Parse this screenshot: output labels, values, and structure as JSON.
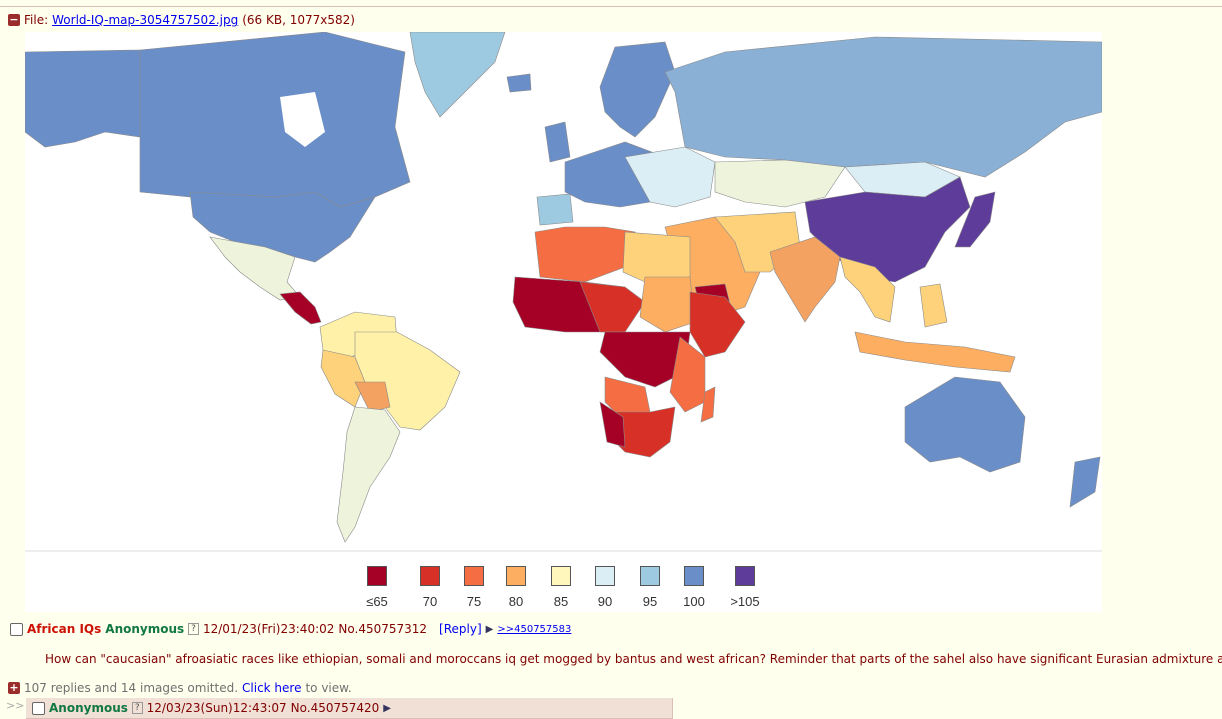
{
  "file": {
    "prefix": "File:",
    "filename": "World-IQ-map-3054757502.jpg",
    "meta": "(66 KB, 1077x582)"
  },
  "legend": {
    "items": [
      {
        "label": "≤65",
        "color": "#a50026"
      },
      {
        "label": "70",
        "color": "#d73027"
      },
      {
        "label": "75",
        "color": "#f46d43"
      },
      {
        "label": "80",
        "color": "#fdae61"
      },
      {
        "label": "85",
        "color": "#fff7bc"
      },
      {
        "label": "90",
        "color": "#dbeef6"
      },
      {
        "label": "95",
        "color": "#9ecae1"
      },
      {
        "label": "100",
        "color": "#6a8ec8"
      },
      {
        "label": ">105",
        "color": "#5e3c99"
      }
    ]
  },
  "post": {
    "subject": "African IQs",
    "name": "Anonymous",
    "id_badge": "?",
    "datetime": "12/01/23(Fri)23:40:02",
    "number": "No.450757312",
    "reply_label": "[Reply]",
    "arrow": "▶",
    "backlink": ">>450757583",
    "body": "How can \"caucasian\" afroasiatic races like ethiopian, somali and moroccans iq get mogged by bantus and west african? Reminder that parts of the sahel also have significant Eurasian admixture as we"
  },
  "omitted": {
    "toggle": "+",
    "text_prefix": "107 replies and 14 images omitted.",
    "link": "Click here",
    "text_suffix": "to view."
  },
  "reply": {
    "arrows": ">>",
    "name": "Anonymous",
    "id_badge": "?",
    "datetime": "12/03/23(Sun)12:43:07",
    "number": "No.450757420",
    "arrow": "▶"
  },
  "map_colors": {
    "ocean": "#ffffff",
    "border": "#8a8a8a"
  }
}
